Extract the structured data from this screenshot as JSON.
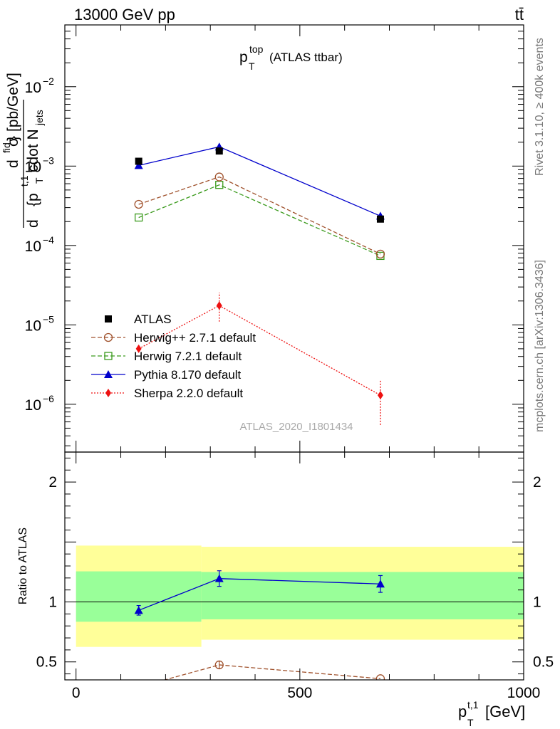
{
  "header": {
    "energy_label": "13000 GeV pp",
    "process_label": "tt̄"
  },
  "side_labels": {
    "rivet": "Rivet 3.1.10, ≥ 400k events",
    "mcplots": "mcplots.cern.ch [arXiv:1306.3436]"
  },
  "chart_data": {
    "type": "line",
    "title": "p_T^top (ATLAS ttbar)",
    "title_main": "p",
    "title_sup": "top",
    "title_sub": "T",
    "title_rest": "(ATLAS ttbar)",
    "analysis_id": "ATLAS_2020_I1801434",
    "xlabel": "p_T^{t,1} [GeV]",
    "xlabel_main": "p",
    "xlabel_sup": "t,1",
    "xlabel_sub": "T",
    "xlabel_unit": "[GeV]",
    "ylabel": "d^2σ^fid / d^2{p_T^{t,1} cdot N_jets} [pb/GeV]",
    "ylabel_unit": "} [pb/GeV]",
    "ylabel_den_prefix": "d",
    "ylabel_den_body": "{p",
    "ylabel_den_sup": "t,1",
    "ylabel_den_sub": "T",
    "ylabel_den_mid": "cdot N",
    "ylabel_den_sub2": "jets",
    "ylabel_num": "d",
    "ylabel_num_sigma": "σ",
    "ylabel_num_sup": "fid",
    "xlim": [
      -25,
      1000
    ],
    "ylim": [
      2.5e-07,
      0.06
    ],
    "ylog": true,
    "x_ticks": [
      0,
      500,
      1000
    ],
    "x_tick_labels": [
      "0",
      "500",
      "1000"
    ],
    "y_ticks": [
      1e-06,
      1e-05,
      0.0001,
      0.001,
      0.01
    ],
    "y_tick_labels_base": [
      "10",
      "10",
      "10",
      "10",
      "10"
    ],
    "y_tick_labels_exp": [
      "−6",
      "−5",
      "−4",
      "−3",
      "−2"
    ],
    "bin_edges": [
      0,
      280,
      1000
    ],
    "series": [
      {
        "name": "ATLAS",
        "style": "data",
        "marker": "square-filled",
        "color": "#000000",
        "x": [
          140,
          320,
          680
        ],
        "y": [
          0.00115,
          0.00155,
          0.000215
        ]
      },
      {
        "name": "Herwig++ 2.7.1 default",
        "style": "dashed",
        "marker": "circle-open",
        "color": "#a0522d",
        "x": [
          140,
          320,
          680
        ],
        "y": [
          0.00033,
          0.00073,
          7.8e-05
        ]
      },
      {
        "name": "Herwig 7.2.1 default",
        "style": "dashed",
        "marker": "square-open",
        "color": "#3c9b1e",
        "x": [
          140,
          320,
          680
        ],
        "y": [
          0.000225,
          0.00058,
          7.4e-05
        ]
      },
      {
        "name": "Pythia 8.170 default",
        "style": "solid",
        "marker": "triangle-filled",
        "color": "#0000cc",
        "x": [
          140,
          320,
          680
        ],
        "y": [
          0.00102,
          0.00175,
          0.000235
        ]
      },
      {
        "name": "Sherpa 2.2.0 default",
        "style": "dotted",
        "marker": "diamond-filled",
        "color": "#ee1111",
        "x": [
          140,
          320,
          680
        ],
        "y": [
          5e-06,
          1.75e-05,
          1.3e-06
        ],
        "err_low": [
          null,
          1.1e-05,
          5.5e-07
        ],
        "err_high": [
          null,
          2.55e-05,
          2.05e-06
        ]
      }
    ],
    "ratio": {
      "ylabel": "Ratio to ATLAS",
      "ylim": [
        0.35,
        2.25
      ],
      "y_ticks": [
        0.5,
        1,
        2
      ],
      "y_tick_labels": [
        "0.5",
        "1",
        "2"
      ],
      "bands": {
        "bin_edges": [
          0,
          280,
          1000
        ],
        "yellow_low": [
          0.625,
          0.685
        ],
        "yellow_high": [
          1.47,
          1.46
        ],
        "green_low": [
          0.835,
          0.855
        ],
        "green_high": [
          1.255,
          1.25
        ],
        "yellow_color": "#ffff99",
        "green_color": "#99ff99"
      },
      "series": [
        {
          "name": "Pythia 8.170 default",
          "color": "#0000cc",
          "marker": "triangle-filled",
          "style": "solid",
          "x": [
            140,
            320,
            680
          ],
          "y": [
            0.93,
            1.195,
            1.15
          ],
          "err_low": [
            0.89,
            1.13,
            1.08
          ],
          "err_high": [
            0.97,
            1.26,
            1.22
          ]
        },
        {
          "name": "Herwig++ 2.7.1 default",
          "color": "#a0522d",
          "marker": "circle-open",
          "style": "dashed",
          "x": [
            140,
            320,
            680
          ],
          "y": [
            0.29,
            0.475,
            0.36
          ],
          "err_low": [
            null,
            0.445,
            null
          ],
          "err_high": [
            null,
            0.505,
            null
          ]
        }
      ]
    }
  }
}
